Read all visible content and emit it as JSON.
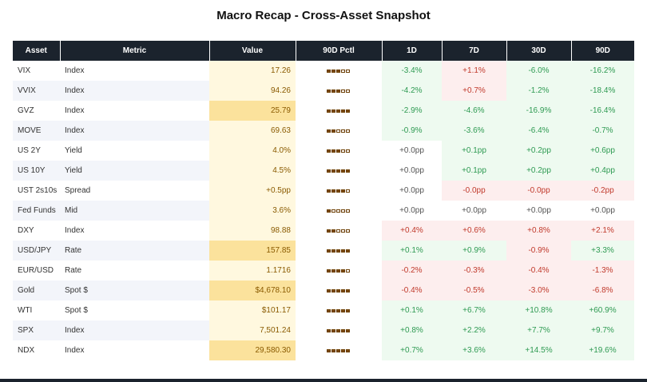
{
  "title": "Macro Recap - Cross-Asset Snapshot",
  "watermark": "amberdata",
  "colors": {
    "header_bg": "#1b232d",
    "pos_bg": "#eefaf0",
    "neg_bg": "#fdeeee",
    "neutral_bg": "#ffffff",
    "pos_text": "#2e9a52",
    "neg_text": "#c0392b",
    "neutral_text": "#555555",
    "value_high": "#fbe29c",
    "value_low": "#fff8df"
  },
  "chart_data": {
    "type": "table",
    "columns": [
      "Asset",
      "Metric",
      "Value",
      "90D Pctl",
      "1D",
      "7D",
      "30D",
      "90D"
    ],
    "pctl_scale_max": 5,
    "rows": [
      {
        "asset": "VIX",
        "metric": "Index",
        "value": "17.26",
        "value_rank": 0.2,
        "pctl": 3,
        "d1": "-3.4%",
        "d7": "+1.1%",
        "d30": "-6.0%",
        "d90": "-16.2%",
        "dir": [
          "pos",
          "neg",
          "pos",
          "pos"
        ]
      },
      {
        "asset": "VVIX",
        "metric": "Index",
        "value": "94.26",
        "value_rank": 0.2,
        "pctl": 3,
        "d1": "-4.2%",
        "d7": "+0.7%",
        "d30": "-1.2%",
        "d90": "-18.4%",
        "dir": [
          "pos",
          "neg",
          "pos",
          "pos"
        ]
      },
      {
        "asset": "GVZ",
        "metric": "Index",
        "value": "25.79",
        "value_rank": 1,
        "pctl": 5,
        "d1": "-2.9%",
        "d7": "-4.6%",
        "d30": "-16.9%",
        "d90": "-16.4%",
        "dir": [
          "pos",
          "pos",
          "pos",
          "pos"
        ]
      },
      {
        "asset": "MOVE",
        "metric": "Index",
        "value": "69.63",
        "value_rank": 0.2,
        "pctl": 2,
        "d1": "-0.9%",
        "d7": "-3.6%",
        "d30": "-6.4%",
        "d90": "-0.7%",
        "dir": [
          "pos",
          "pos",
          "pos",
          "pos"
        ]
      },
      {
        "asset": "US 2Y",
        "metric": "Yield",
        "value": "4.0%",
        "value_rank": 0.2,
        "pctl": 3,
        "d1": "+0.0pp",
        "d7": "+0.1pp",
        "d30": "+0.2pp",
        "d90": "+0.6pp",
        "dir": [
          "neu",
          "pos",
          "pos",
          "pos"
        ]
      },
      {
        "asset": "US 10Y",
        "metric": "Yield",
        "value": "4.5%",
        "value_rank": 0.2,
        "pctl": 5,
        "d1": "+0.0pp",
        "d7": "+0.1pp",
        "d30": "+0.2pp",
        "d90": "+0.4pp",
        "dir": [
          "neu",
          "pos",
          "pos",
          "pos"
        ]
      },
      {
        "asset": "UST 2s10s",
        "metric": "Spread",
        "value": "+0.5pp",
        "value_rank": 0.2,
        "pctl": 4,
        "d1": "+0.0pp",
        "d7": "-0.0pp",
        "d30": "-0.0pp",
        "d90": "-0.2pp",
        "dir": [
          "neu",
          "neg",
          "neg",
          "neg"
        ]
      },
      {
        "asset": "Fed Funds",
        "metric": "Mid",
        "value": "3.6%",
        "value_rank": 0.2,
        "pctl": 1,
        "d1": "+0.0pp",
        "d7": "+0.0pp",
        "d30": "+0.0pp",
        "d90": "+0.0pp",
        "dir": [
          "neu",
          "neu",
          "neu",
          "neu"
        ]
      },
      {
        "asset": "DXY",
        "metric": "Index",
        "value": "98.88",
        "value_rank": 0.2,
        "pctl": 2,
        "d1": "+0.4%",
        "d7": "+0.6%",
        "d30": "+0.8%",
        "d90": "+2.1%",
        "dir": [
          "neg",
          "neg",
          "neg",
          "neg"
        ]
      },
      {
        "asset": "USD/JPY",
        "metric": "Rate",
        "value": "157.85",
        "value_rank": 1,
        "pctl": 5,
        "d1": "+0.1%",
        "d7": "+0.9%",
        "d30": "-0.9%",
        "d90": "+3.3%",
        "dir": [
          "pos",
          "pos",
          "neg",
          "pos"
        ]
      },
      {
        "asset": "EUR/USD",
        "metric": "Rate",
        "value": "1.1716",
        "value_rank": 0.2,
        "pctl": 4,
        "d1": "-0.2%",
        "d7": "-0.3%",
        "d30": "-0.4%",
        "d90": "-1.3%",
        "dir": [
          "neg",
          "neg",
          "neg",
          "neg"
        ]
      },
      {
        "asset": "Gold",
        "metric": "Spot $",
        "value": "$4,678.10",
        "value_rank": 1,
        "pctl": 5,
        "d1": "-0.4%",
        "d7": "-0.5%",
        "d30": "-3.0%",
        "d90": "-6.8%",
        "dir": [
          "neg",
          "neg",
          "neg",
          "neg"
        ]
      },
      {
        "asset": "WTI",
        "metric": "Spot $",
        "value": "$101.17",
        "value_rank": 0.2,
        "pctl": 5,
        "d1": "+0.1%",
        "d7": "+6.7%",
        "d30": "+10.8%",
        "d90": "+60.9%",
        "dir": [
          "pos",
          "pos",
          "pos",
          "pos"
        ]
      },
      {
        "asset": "SPX",
        "metric": "Index",
        "value": "7,501.24",
        "value_rank": 0.2,
        "pctl": 5,
        "d1": "+0.8%",
        "d7": "+2.2%",
        "d30": "+7.7%",
        "d90": "+9.7%",
        "dir": [
          "pos",
          "pos",
          "pos",
          "pos"
        ]
      },
      {
        "asset": "NDX",
        "metric": "Index",
        "value": "29,580.30",
        "value_rank": 1,
        "pctl": 5,
        "d1": "+0.7%",
        "d7": "+3.6%",
        "d30": "+14.5%",
        "d90": "+19.6%",
        "dir": [
          "pos",
          "pos",
          "pos",
          "pos"
        ]
      }
    ]
  }
}
